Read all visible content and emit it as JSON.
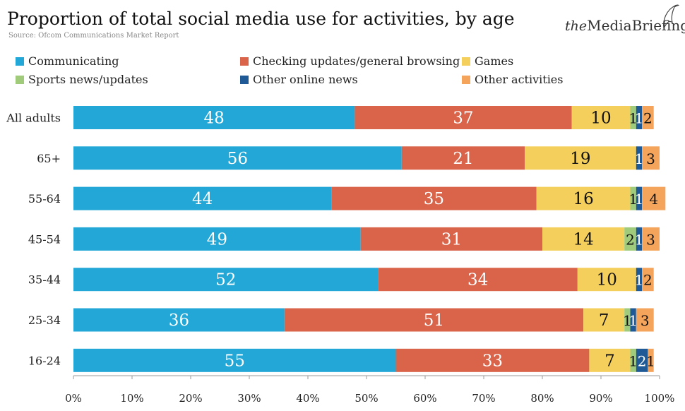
{
  "header": {
    "title": "Proportion of total social media use for activities, by age",
    "source": "Source: Ofcom Communications Market Report",
    "brand_prefix": "the",
    "brand_name": "MediaBriefing"
  },
  "chart_data": {
    "type": "stacked-bar-horizontal",
    "title": "Proportion of total social media use for activities, by age",
    "categories": [
      "All adults",
      "65+",
      "55-64",
      "45-54",
      "35-44",
      "25-34",
      "16-24"
    ],
    "series": [
      {
        "name": "Communicating",
        "color": "#22a7d6",
        "values": [
          48,
          56,
          44,
          49,
          52,
          36,
          55
        ]
      },
      {
        "name": "Checking updates/general browsing",
        "color": "#d9644a",
        "values": [
          37,
          21,
          35,
          31,
          34,
          51,
          33
        ]
      },
      {
        "name": "Games",
        "color": "#f5cf5c",
        "values": [
          10,
          19,
          16,
          14,
          10,
          7,
          7
        ]
      },
      {
        "name": "Sports news/updates",
        "color": "#9fcb7a",
        "values": [
          1,
          0,
          1,
          2,
          0,
          1,
          1
        ]
      },
      {
        "name": "Other online news",
        "color": "#1f5a96",
        "values": [
          1,
          1,
          1,
          1,
          1,
          1,
          2
        ]
      },
      {
        "name": "Other activities",
        "color": "#f5a55b",
        "values": [
          2,
          3,
          4,
          3,
          2,
          3,
          1
        ]
      }
    ],
    "xlim": [
      0,
      100
    ],
    "x_ticks": [
      "0%",
      "10%",
      "20%",
      "30%",
      "40%",
      "50%",
      "60%",
      "70%",
      "80%",
      "90%",
      "100%"
    ],
    "xlabel": "",
    "ylabel": "",
    "grid": false,
    "legend": "top"
  }
}
